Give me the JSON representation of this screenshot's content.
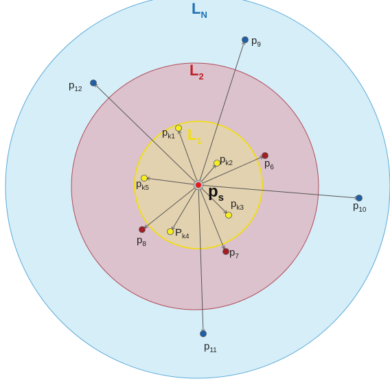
{
  "levels": [
    {
      "main": "L",
      "sub": "N",
      "color": "#1f6fb2"
    },
    {
      "main": "L",
      "sub": "2",
      "color": "#c0202a"
    },
    {
      "main": "L",
      "sub": "1",
      "color": "#f2d800"
    }
  ],
  "source": {
    "main": "p",
    "sub": "s"
  },
  "points": [
    {
      "main": "p",
      "sub": "9"
    },
    {
      "main": "p",
      "sub": "12"
    },
    {
      "main": "p",
      "sub": "k1"
    },
    {
      "main": "p",
      "sub": "k2"
    },
    {
      "main": "p",
      "sub": "6"
    },
    {
      "main": "p",
      "sub": "k5"
    },
    {
      "main": "p",
      "sub": "k3"
    },
    {
      "main": "p",
      "sub": "10"
    },
    {
      "main": "p",
      "sub": "8"
    },
    {
      "main": "P",
      "sub": "k4"
    },
    {
      "main": "p",
      "sub": "7"
    },
    {
      "main": "p",
      "sub": "11"
    }
  ],
  "colors": {
    "outer_fill": "#d6eef8",
    "outer_stroke": "#5aaad8",
    "middle_fill": "#dcc2cc",
    "middle_stroke": "#b04a5a",
    "inner_fill": "#e3d2b0",
    "inner_stroke": "#f2e000",
    "blue_point": "#1f5fa8",
    "red_point": "#a31e24",
    "yellow_point": "#f6ee20"
  }
}
